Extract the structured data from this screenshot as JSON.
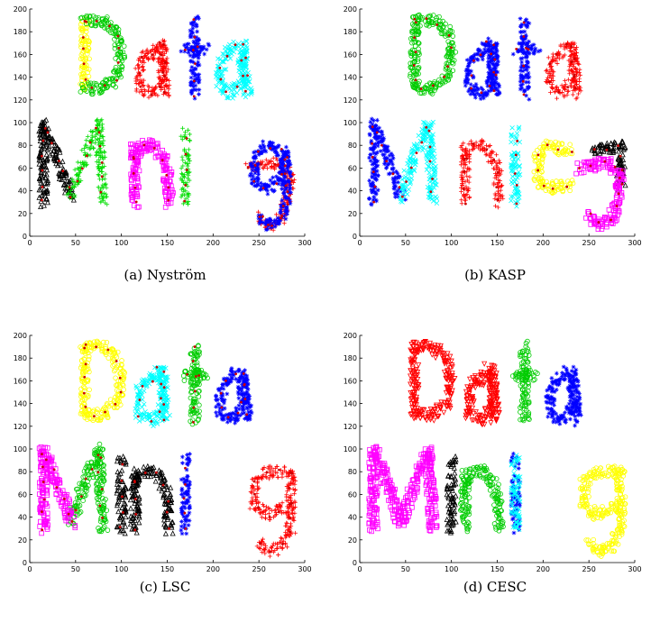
{
  "chart_data": [
    {
      "type": "scatter",
      "caption": "(a) Nyström",
      "title": "",
      "xlabel": "",
      "ylabel": "",
      "xlim": [
        0,
        300
      ],
      "ylim": [
        0,
        200
      ],
      "xticks": [
        0,
        50,
        100,
        150,
        200,
        250,
        300
      ],
      "yticks": [
        0,
        20,
        40,
        60,
        80,
        100,
        120,
        140,
        160,
        180,
        200
      ],
      "grid": false,
      "legend": "none",
      "center_color": "#cc0000",
      "series": [
        {
          "color": "#ffff00",
          "marker": "o",
          "shapes": [
            "D_left"
          ]
        },
        {
          "color": "#00cc00",
          "marker": "o",
          "shapes": [
            "D_right"
          ]
        },
        {
          "color": "#ff0000",
          "marker": "+",
          "shapes": [
            "a1",
            "g_lower"
          ]
        },
        {
          "color": "#0000ff",
          "marker": "*",
          "shapes": [
            "t",
            "g_upper"
          ]
        },
        {
          "color": "#00ffff",
          "marker": "x",
          "shapes": [
            "a2"
          ]
        },
        {
          "color": "#000000",
          "marker": "^",
          "shapes": [
            "M_left"
          ]
        },
        {
          "color": "#00dd00",
          "marker": "+",
          "shapes": [
            "M_right",
            "i2"
          ]
        },
        {
          "color": "#ff00ff",
          "marker": "s",
          "shapes": [
            "n"
          ]
        }
      ]
    },
    {
      "type": "scatter",
      "caption": "(b) KASP",
      "title": "",
      "xlabel": "",
      "ylabel": "",
      "xlim": [
        0,
        300
      ],
      "ylim": [
        0,
        200
      ],
      "xticks": [
        0,
        50,
        100,
        150,
        200,
        250,
        300
      ],
      "yticks": [
        0,
        20,
        40,
        60,
        80,
        100,
        120,
        140,
        160,
        180,
        200
      ],
      "grid": false,
      "legend": "none",
      "center_color": "#cc0000",
      "series": [
        {
          "color": "#00cc00",
          "marker": "o",
          "shapes": [
            "D_left",
            "D_right"
          ]
        },
        {
          "color": "#0000ff",
          "marker": "*",
          "shapes": [
            "a1",
            "t",
            "M_left"
          ]
        },
        {
          "color": "#ff0000",
          "marker": "+",
          "shapes": [
            "a2",
            "n"
          ]
        },
        {
          "color": "#00ffff",
          "marker": "x",
          "shapes": [
            "M_right",
            "i2"
          ]
        },
        {
          "color": "#ffff00",
          "marker": "o",
          "shapes": [
            "g_left"
          ]
        },
        {
          "color": "#000000",
          "marker": "^",
          "shapes": [
            "g_right"
          ]
        },
        {
          "color": "#ff00ff",
          "marker": "s",
          "shapes": [
            "g_lower"
          ]
        }
      ]
    },
    {
      "type": "scatter",
      "caption": "(c) LSC",
      "title": "",
      "xlabel": "",
      "ylabel": "",
      "xlim": [
        0,
        300
      ],
      "ylim": [
        0,
        200
      ],
      "xticks": [
        0,
        50,
        100,
        150,
        200,
        250,
        300
      ],
      "yticks": [
        0,
        20,
        40,
        60,
        80,
        100,
        120,
        140,
        160,
        180,
        200
      ],
      "grid": false,
      "legend": "none",
      "center_color": "#cc0000",
      "series": [
        {
          "color": "#ffff00",
          "marker": "o",
          "shapes": [
            "D_left",
            "D_right"
          ]
        },
        {
          "color": "#00ffff",
          "marker": "x",
          "shapes": [
            "a1"
          ]
        },
        {
          "color": "#00cc00",
          "marker": "o",
          "shapes": [
            "t",
            "M_right"
          ]
        },
        {
          "color": "#0000ff",
          "marker": "*",
          "shapes": [
            "a2",
            "i2"
          ]
        },
        {
          "color": "#ff00ff",
          "marker": "s",
          "shapes": [
            "M_left"
          ]
        },
        {
          "color": "#000000",
          "marker": "^",
          "shapes": [
            "i1",
            "n"
          ]
        },
        {
          "color": "#ff0000",
          "marker": "+",
          "shapes": [
            "g"
          ]
        }
      ]
    },
    {
      "type": "scatter",
      "caption": "(d) CESC",
      "title": "",
      "xlabel": "",
      "ylabel": "",
      "xlim": [
        0,
        300
      ],
      "ylim": [
        0,
        200
      ],
      "xticks": [
        0,
        50,
        100,
        150,
        200,
        250,
        300
      ],
      "yticks": [
        0,
        20,
        40,
        60,
        80,
        100,
        120,
        140,
        160,
        180,
        200
      ],
      "grid": false,
      "legend": "none",
      "center_color": "",
      "series": [
        {
          "color": "#ff0000",
          "marker": "v",
          "shapes": [
            "D_left",
            "D_right",
            "a1"
          ]
        },
        {
          "color": "#00cc00",
          "marker": "o",
          "shapes": [
            "t",
            "n"
          ]
        },
        {
          "color": "#0000ff",
          "marker": "*",
          "shapes": [
            "a2",
            "i2"
          ]
        },
        {
          "color": "#ff00ff",
          "marker": "s",
          "shapes": [
            "M_left",
            "M_right"
          ]
        },
        {
          "color": "#000000",
          "marker": "^",
          "shapes": [
            "i1"
          ]
        },
        {
          "color": "#00ffff",
          "marker": "x",
          "shapes": [
            "i_extra"
          ]
        },
        {
          "color": "#ffff00",
          "marker": "o",
          "shapes": [
            "g"
          ]
        }
      ]
    }
  ]
}
